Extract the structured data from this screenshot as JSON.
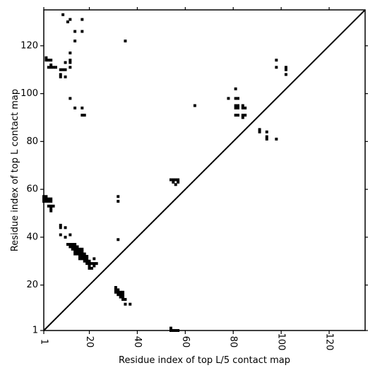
{
  "chart_data": {
    "type": "scatter",
    "title": "",
    "xlabel": "Residue index of top L/5 contact map",
    "ylabel": "Residue index of top L contact map",
    "xlim": [
      1,
      135
    ],
    "ylim": [
      1,
      135
    ],
    "xticks": [
      1,
      20,
      40,
      60,
      80,
      100,
      120
    ],
    "yticks": [
      1,
      20,
      40,
      60,
      80,
      100,
      120
    ],
    "diagonal": true,
    "grid": false,
    "marker": "square",
    "color": "#000000",
    "upper_points": [
      [
        9,
        133
      ],
      [
        11,
        130
      ],
      [
        12,
        131
      ],
      [
        17,
        131
      ],
      [
        14,
        126
      ],
      [
        17,
        126
      ],
      [
        14,
        122
      ],
      [
        35,
        122
      ],
      [
        2,
        115
      ],
      [
        2,
        114
      ],
      [
        3,
        114
      ],
      [
        4,
        114
      ],
      [
        12,
        117
      ],
      [
        10,
        113
      ],
      [
        12,
        114
      ],
      [
        12,
        113
      ],
      [
        3,
        111
      ],
      [
        4,
        111
      ],
      [
        5,
        111
      ],
      [
        6,
        111
      ],
      [
        4,
        112
      ],
      [
        8,
        110
      ],
      [
        9,
        110
      ],
      [
        8,
        108
      ],
      [
        8,
        107
      ],
      [
        10,
        110
      ],
      [
        10,
        107
      ],
      [
        12,
        111
      ],
      [
        12,
        98
      ],
      [
        14,
        94
      ],
      [
        17,
        94
      ],
      [
        17,
        91
      ],
      [
        18,
        91
      ],
      [
        64,
        95
      ],
      [
        78,
        98
      ],
      [
        81,
        102
      ],
      [
        81,
        98
      ],
      [
        82,
        98
      ],
      [
        81,
        95
      ],
      [
        82,
        95
      ],
      [
        81,
        94
      ],
      [
        82,
        94
      ],
      [
        84,
        95
      ],
      [
        84,
        94
      ],
      [
        85,
        94
      ],
      [
        81,
        91
      ],
      [
        82,
        91
      ],
      [
        84,
        91
      ],
      [
        85,
        91
      ],
      [
        84,
        90
      ],
      [
        91,
        85
      ],
      [
        91,
        84
      ],
      [
        94,
        84
      ],
      [
        94,
        82
      ],
      [
        94,
        81
      ],
      [
        98,
        81
      ],
      [
        98,
        114
      ],
      [
        98,
        111
      ],
      [
        102,
        111
      ],
      [
        102,
        110
      ],
      [
        102,
        108
      ]
    ],
    "lower_points": [
      [
        1,
        57
      ],
      [
        2,
        57
      ],
      [
        1,
        56
      ],
      [
        2,
        56
      ],
      [
        3,
        56
      ],
      [
        4,
        56
      ],
      [
        1,
        55
      ],
      [
        2,
        55
      ],
      [
        3,
        55
      ],
      [
        4,
        55
      ],
      [
        3,
        53
      ],
      [
        4,
        53
      ],
      [
        5,
        53
      ],
      [
        4,
        52
      ],
      [
        4,
        51
      ],
      [
        32,
        57
      ],
      [
        32,
        55
      ],
      [
        8,
        45
      ],
      [
        8,
        44
      ],
      [
        10,
        44
      ],
      [
        8,
        41
      ],
      [
        10,
        40
      ],
      [
        12,
        41
      ],
      [
        32,
        39
      ],
      [
        11,
        37
      ],
      [
        12,
        37
      ],
      [
        13,
        37
      ],
      [
        14,
        37
      ],
      [
        12,
        36
      ],
      [
        13,
        36
      ],
      [
        14,
        36
      ],
      [
        15,
        36
      ],
      [
        13,
        35
      ],
      [
        14,
        35
      ],
      [
        15,
        35
      ],
      [
        16,
        35
      ],
      [
        17,
        35
      ],
      [
        14,
        34
      ],
      [
        15,
        34
      ],
      [
        16,
        34
      ],
      [
        17,
        34
      ],
      [
        14,
        33
      ],
      [
        15,
        33
      ],
      [
        16,
        33
      ],
      [
        17,
        33
      ],
      [
        18,
        33
      ],
      [
        16,
        32
      ],
      [
        17,
        32
      ],
      [
        18,
        32
      ],
      [
        19,
        32
      ],
      [
        16,
        31
      ],
      [
        17,
        31
      ],
      [
        18,
        31
      ],
      [
        19,
        31
      ],
      [
        18,
        30
      ],
      [
        19,
        30
      ],
      [
        20,
        30
      ],
      [
        22,
        31
      ],
      [
        19,
        29
      ],
      [
        20,
        29
      ],
      [
        21,
        29
      ],
      [
        22,
        29
      ],
      [
        23,
        29
      ],
      [
        20,
        28
      ],
      [
        22,
        28
      ],
      [
        20,
        27
      ],
      [
        21,
        27
      ],
      [
        31,
        19
      ],
      [
        31,
        18
      ],
      [
        32,
        18
      ],
      [
        33,
        17
      ],
      [
        31,
        17
      ],
      [
        32,
        17
      ],
      [
        34,
        17
      ],
      [
        32,
        16
      ],
      [
        33,
        16
      ],
      [
        34,
        16
      ],
      [
        33,
        15
      ],
      [
        34,
        15
      ],
      [
        34,
        14
      ],
      [
        35,
        14
      ],
      [
        35,
        12
      ],
      [
        37,
        12
      ],
      [
        54,
        64
      ],
      [
        55,
        64
      ],
      [
        56,
        64
      ],
      [
        57,
        64
      ],
      [
        55,
        63
      ],
      [
        57,
        63
      ],
      [
        56,
        62
      ],
      [
        54,
        2
      ],
      [
        54,
        1
      ],
      [
        55,
        1
      ],
      [
        56,
        1
      ],
      [
        57,
        1
      ]
    ]
  }
}
